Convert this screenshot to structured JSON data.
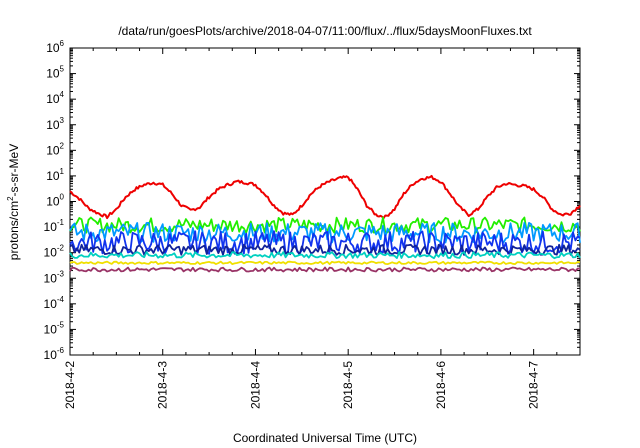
{
  "chart_data": {
    "type": "line",
    "title": "/data/run/goesPlots/archive/2018-04-07/11:00/flux/../flux/5daysMoonFluxes.txt",
    "xlabel": "Coordinated Universal Time (UTC)",
    "ylabel": {
      "base": "protons/cm",
      "sup": "2",
      "rest": "-s-sr-MeV"
    },
    "xlim": [
      "2018-04-02",
      "2018-04-07 12:00"
    ],
    "ylim": [
      1e-06,
      1000000.0
    ],
    "yscale": "log",
    "x_ticks": [
      "2018-4-2",
      "2018-4-3",
      "2018-4-4",
      "2018-4-5",
      "2018-4-6",
      "2018-4-7"
    ],
    "y_ticks": [
      {
        "base": "10",
        "exp": "-6",
        "value": -6
      },
      {
        "base": "10",
        "exp": "-5",
        "value": -5
      },
      {
        "base": "10",
        "exp": "-4",
        "value": -4
      },
      {
        "base": "10",
        "exp": "-3",
        "value": -3
      },
      {
        "base": "10",
        "exp": "-2",
        "value": -2
      },
      {
        "base": "10",
        "exp": "-1",
        "value": -1
      },
      {
        "base": "10",
        "exp": "0",
        "value": 0
      },
      {
        "base": "10",
        "exp": "1",
        "value": 1
      },
      {
        "base": "10",
        "exp": "2",
        "value": 2
      },
      {
        "base": "10",
        "exp": "3",
        "value": 3
      },
      {
        "base": "10",
        "exp": "4",
        "value": 4
      },
      {
        "base": "10",
        "exp": "5",
        "value": 5
      },
      {
        "base": "10",
        "exp": "6",
        "value": 6
      }
    ],
    "grid": false,
    "legend": "none",
    "series": [
      {
        "color": "#ee0000",
        "x_days": [
          0.0,
          0.1,
          0.2,
          0.3,
          0.4,
          0.5,
          0.6,
          0.7,
          0.8,
          0.9,
          1.0,
          1.1,
          1.2,
          1.3,
          1.4,
          1.5,
          1.6,
          1.7,
          1.8,
          1.9,
          2.0,
          2.1,
          2.2,
          2.3,
          2.4,
          2.5,
          2.6,
          2.7,
          2.8,
          2.9,
          3.0,
          3.1,
          3.2,
          3.3,
          3.4,
          3.5,
          3.6,
          3.7,
          3.8,
          3.9,
          4.0,
          4.1,
          4.2,
          4.3,
          4.4,
          4.5,
          4.6,
          4.7,
          4.8,
          4.9,
          5.0,
          5.1,
          5.2,
          5.3,
          5.4,
          5.5
        ],
        "values": [
          2.5,
          1.3,
          0.55,
          0.35,
          0.25,
          0.5,
          1.5,
          3.0,
          4.5,
          5.5,
          4.5,
          2.0,
          0.7,
          0.45,
          0.6,
          1.5,
          3.0,
          4.5,
          6.0,
          5.5,
          4.5,
          2.0,
          0.7,
          0.35,
          0.3,
          0.7,
          2.0,
          4.0,
          6.0,
          8.0,
          9.0,
          3.0,
          0.7,
          0.3,
          0.25,
          0.5,
          2.0,
          5.0,
          8.0,
          9.0,
          6.0,
          2.0,
          0.6,
          0.3,
          0.5,
          1.5,
          3.5,
          5.0,
          4.5,
          4.0,
          3.0,
          1.5,
          0.5,
          0.3,
          0.35,
          0.7
        ]
      },
      {
        "color": "#22ee00",
        "level": 0.12,
        "amp": 0.3
      },
      {
        "color": "#0099ff",
        "level": 0.06,
        "amp": 0.4
      },
      {
        "color": "#1133ee",
        "level": 0.025,
        "amp": 0.45
      },
      {
        "color": "#112299",
        "level": 0.013,
        "amp": 0.2
      },
      {
        "color": "#00d0c0",
        "level": 0.008,
        "amp": 0.12
      },
      {
        "color": "#f0e000",
        "level": 0.004,
        "amp": 0.05
      },
      {
        "color": "#993366",
        "level": 0.0022,
        "amp": 0.08
      }
    ]
  }
}
